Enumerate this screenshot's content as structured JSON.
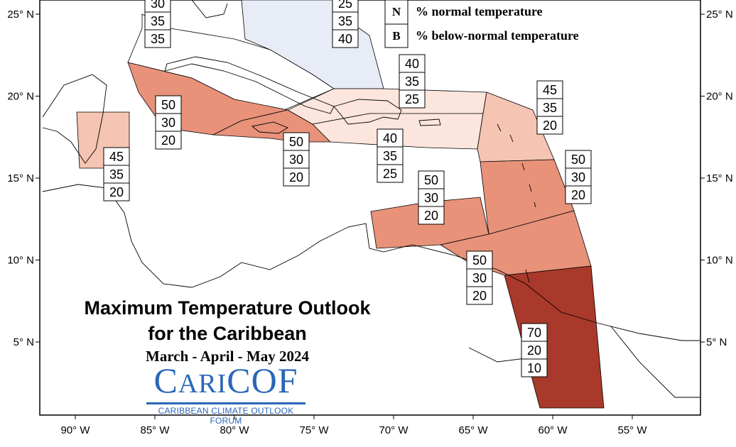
{
  "map": {
    "title_line1": "Maximum Temperature Outlook",
    "title_line2": "for the Caribbean",
    "subtitle": "March - April - May 2024",
    "logo_text": "CariCOF",
    "logo_subtitle": "CARIBBEAN CLIMATE OUTLOOK FORUM",
    "legend": [
      {
        "key": "N",
        "label": "% normal temperature"
      },
      {
        "key": "B",
        "label": "% below-normal temperature"
      }
    ],
    "lon_ticks": [
      {
        "lon": -90,
        "label": "90° W"
      },
      {
        "lon": -85,
        "label": "85° W"
      },
      {
        "lon": -80,
        "label": "80° W"
      },
      {
        "lon": -75,
        "label": "75° W"
      },
      {
        "lon": -70,
        "label": "70° W"
      },
      {
        "lon": -65,
        "label": "65° W"
      },
      {
        "lon": -60,
        "label": "60° W"
      },
      {
        "lon": -55,
        "label": "55° W"
      }
    ],
    "lat_ticks": [
      {
        "lat": 25,
        "label": "25° N"
      },
      {
        "lat": 20,
        "label": "20° N"
      },
      {
        "lat": 15,
        "label": "15° N"
      },
      {
        "lat": 10,
        "label": "10° N"
      },
      {
        "lat": 5,
        "label": "5° N"
      }
    ],
    "colors": {
      "ocean": "#ffffff",
      "frame": "#000000",
      "p70": "#a9392a",
      "p50": "#e8927a",
      "p45": "#f5c4b2",
      "p40": "#fbe5dc",
      "normal_bg": "#e8ecf7"
    },
    "regions": [
      {
        "name": "bahamas-north",
        "values": [
          "30",
          "35",
          "35"
        ]
      },
      {
        "name": "bahamas-central",
        "values": [
          "25",
          "35",
          "40"
        ]
      },
      {
        "name": "cayman-jamaica",
        "values": [
          "50",
          "30",
          "20"
        ]
      },
      {
        "name": "belize",
        "values": [
          "45",
          "35",
          "20"
        ]
      },
      {
        "name": "jamaica-south",
        "values": [
          "50",
          "30",
          "20"
        ]
      },
      {
        "name": "hispaniola",
        "values": [
          "40",
          "35",
          "25"
        ]
      },
      {
        "name": "hispaniola-south",
        "values": [
          "40",
          "35",
          "25"
        ]
      },
      {
        "name": "leeward-islands",
        "values": [
          "45",
          "35",
          "20"
        ]
      },
      {
        "name": "windward-islands",
        "values": [
          "50",
          "30",
          "20"
        ]
      },
      {
        "name": "abc-islands",
        "values": [
          "50",
          "30",
          "20"
        ]
      },
      {
        "name": "trinidad",
        "values": [
          "50",
          "30",
          "20"
        ]
      },
      {
        "name": "guianas",
        "values": [
          "70",
          "20",
          "10"
        ]
      }
    ]
  }
}
